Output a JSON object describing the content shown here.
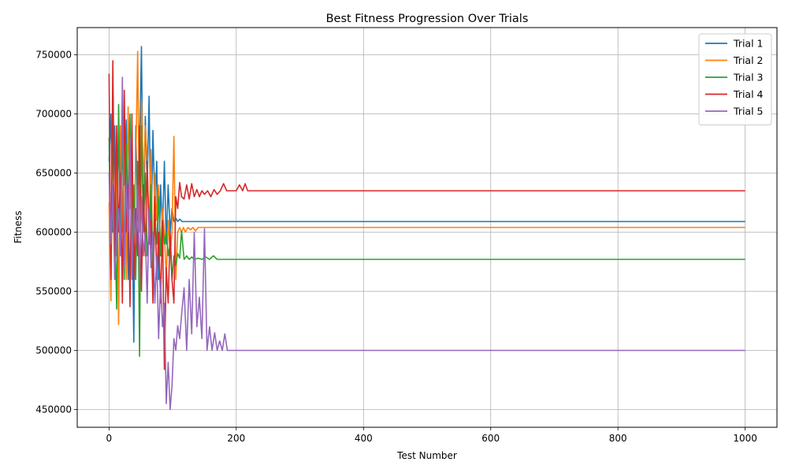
{
  "chart_data": {
    "type": "line",
    "title": "Best Fitness Progression Over Trials",
    "xlabel": "Test Number",
    "ylabel": "Fitness",
    "xlim": [
      -50,
      1050
    ],
    "ylim": [
      435000,
      773000
    ],
    "xticks": [
      0,
      200,
      400,
      600,
      800,
      1000
    ],
    "yticks": [
      450000,
      500000,
      550000,
      600000,
      650000,
      700000,
      750000
    ],
    "xtick_labels": [
      "0",
      "200",
      "400",
      "600",
      "800",
      "1000"
    ],
    "ytick_labels": [
      "450000",
      "500000",
      "550000",
      "600000",
      "650000",
      "700000",
      "750000"
    ],
    "grid": true,
    "legend_position": "top-right",
    "series": [
      {
        "name": "Trial 1",
        "color": "#1f77b4",
        "x": [
          0,
          3,
          6,
          9,
          12,
          15,
          18,
          21,
          24,
          27,
          30,
          33,
          36,
          39,
          42,
          45,
          48,
          51,
          54,
          57,
          60,
          63,
          66,
          69,
          72,
          75,
          78,
          81,
          84,
          87,
          90,
          93,
          96,
          99,
          102,
          105,
          108,
          111,
          115,
          1000
        ],
        "y": [
          660000,
          700000,
          600000,
          690000,
          580000,
          685000,
          620000,
          700000,
          640000,
          695000,
          560000,
          680000,
          630000,
          507000,
          690000,
          610000,
          670000,
          757000,
          600000,
          698000,
          640000,
          715000,
          590000,
          686000,
          620000,
          660000,
          560000,
          640000,
          600000,
          660000,
          590000,
          640000,
          600000,
          620000,
          609000,
          612000,
          609000,
          611000,
          609000,
          609000
        ]
      },
      {
        "name": "Trial 2",
        "color": "#ff7f0e",
        "x": [
          0,
          3,
          6,
          9,
          12,
          15,
          18,
          21,
          24,
          27,
          30,
          33,
          36,
          39,
          42,
          45,
          48,
          51,
          54,
          57,
          60,
          63,
          66,
          69,
          72,
          75,
          78,
          81,
          84,
          87,
          90,
          93,
          96,
          99,
          102,
          105,
          108,
          111,
          114,
          117,
          120,
          124,
          128,
          132,
          136,
          140,
          144,
          1000
        ],
        "y": [
          625000,
          542000,
          700000,
          560000,
          680000,
          522000,
          690000,
          600000,
          700000,
          560000,
          706000,
          620000,
          680000,
          570000,
          660000,
          753000,
          600000,
          711000,
          640000,
          690000,
          660000,
          600000,
          670000,
          560000,
          650000,
          610000,
          640000,
          580000,
          620000,
          600000,
          560000,
          610000,
          580000,
          600000,
          681000,
          560000,
          600000,
          604000,
          600000,
          604000,
          600000,
          604000,
          602000,
          604000,
          601000,
          604000,
          604000,
          604000
        ]
      },
      {
        "name": "Trial 3",
        "color": "#2ca02c",
        "x": [
          0,
          3,
          6,
          9,
          12,
          15,
          18,
          21,
          24,
          27,
          30,
          33,
          36,
          39,
          42,
          45,
          48,
          51,
          54,
          57,
          60,
          63,
          66,
          69,
          72,
          75,
          78,
          81,
          84,
          87,
          90,
          93,
          96,
          99,
          102,
          105,
          108,
          111,
          114,
          118,
          122,
          126,
          130,
          134,
          140,
          146,
          152,
          158,
          164,
          170,
          1000
        ],
        "y": [
          680000,
          570000,
          690000,
          610000,
          535000,
          708000,
          600000,
          690000,
          560000,
          675000,
          620000,
          700000,
          590000,
          640000,
          560000,
          660000,
          495000,
          690000,
          600000,
          650000,
          580000,
          600000,
          640000,
          560000,
          610000,
          590000,
          630000,
          580000,
          610000,
          590000,
          600000,
          580000,
          590000,
          560000,
          580000,
          572000,
          582000,
          578000,
          601000,
          577000,
          580000,
          577000,
          579000,
          577000,
          578000,
          577000,
          579000,
          577000,
          580000,
          577000,
          577000
        ]
      },
      {
        "name": "Trial 4",
        "color": "#d62728",
        "x": [
          0,
          3,
          6,
          9,
          12,
          15,
          18,
          21,
          24,
          27,
          30,
          33,
          36,
          39,
          42,
          45,
          48,
          51,
          54,
          57,
          60,
          63,
          66,
          69,
          72,
          75,
          78,
          81,
          84,
          87,
          90,
          93,
          96,
          99,
          102,
          105,
          108,
          111,
          114,
          118,
          122,
          126,
          130,
          134,
          138,
          142,
          146,
          150,
          155,
          160,
          165,
          170,
          175,
          180,
          185,
          200,
          205,
          210,
          214,
          218,
          1000
        ],
        "y": [
          734000,
          560000,
          745000,
          580000,
          690000,
          600000,
          650000,
          540000,
          720000,
          600000,
          640000,
          537000,
          700000,
          560000,
          620000,
          580000,
          690000,
          550000,
          640000,
          580000,
          660000,
          590000,
          610000,
          540000,
          630000,
          560000,
          600000,
          540000,
          610000,
          484000,
          570000,
          540000,
          600000,
          560000,
          540000,
          630000,
          620000,
          642000,
          630000,
          628000,
          640000,
          628000,
          641000,
          630000,
          636000,
          630000,
          635000,
          632000,
          635000,
          630000,
          636000,
          632000,
          635000,
          641000,
          635000,
          635000,
          640000,
          635000,
          641000,
          635000,
          635000
        ]
      },
      {
        "name": "Trial 5",
        "color": "#9467bd",
        "x": [
          0,
          3,
          6,
          9,
          12,
          15,
          18,
          21,
          24,
          27,
          30,
          33,
          36,
          39,
          42,
          45,
          48,
          51,
          54,
          57,
          60,
          63,
          66,
          69,
          72,
          75,
          78,
          81,
          84,
          87,
          90,
          93,
          96,
          99,
          102,
          105,
          108,
          111,
          114,
          118,
          122,
          126,
          130,
          134,
          138,
          142,
          146,
          150,
          154,
          158,
          162,
          166,
          170,
          174,
          178,
          182,
          186,
          1000
        ],
        "y": [
          650000,
          590000,
          640000,
          560000,
          600000,
          620000,
          580000,
          731000,
          570000,
          640000,
          600000,
          680000,
          560000,
          620000,
          590000,
          640000,
          560000,
          630000,
          580000,
          600000,
          540000,
          620000,
          570000,
          600000,
          540000,
          580000,
          510000,
          560000,
          520000,
          540000,
          455000,
          490000,
          450000,
          470000,
          510000,
          500000,
          521000,
          510000,
          530000,
          553000,
          500000,
          560000,
          514000,
          600000,
          520000,
          545000,
          510000,
          603000,
          500000,
          520000,
          500000,
          515000,
          500000,
          508000,
          500000,
          514000,
          500000,
          500000
        ]
      }
    ]
  }
}
